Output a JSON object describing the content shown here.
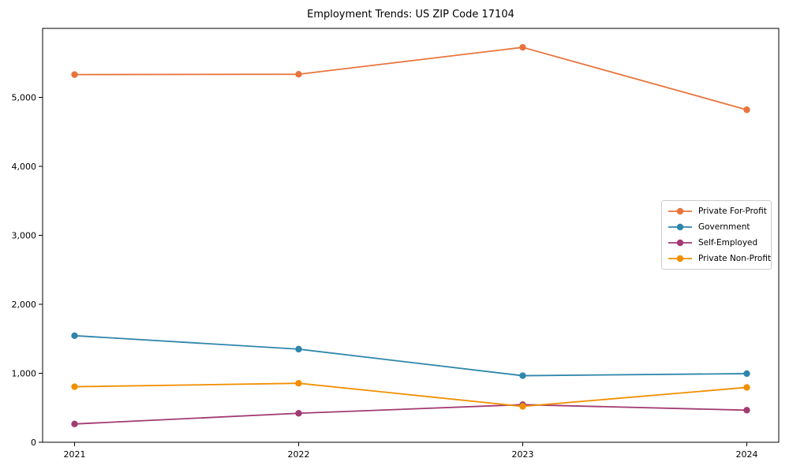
{
  "figure": {
    "background": "#ffffff",
    "axis_color": "#000000",
    "legend_border_color": "#cccccc"
  },
  "chart_data": {
    "type": "line",
    "title": "Employment Trends: US ZIP Code 17104",
    "xlabel": "",
    "ylabel": "",
    "x_categories": [
      "2021",
      "2022",
      "2023",
      "2024"
    ],
    "series": [
      {
        "name": "Private For-Profit",
        "color": "#E8743B",
        "values": [
          5330,
          5335,
          5725,
          4820
        ]
      },
      {
        "name": "Government",
        "color": "#2E86AB",
        "values": [
          1545,
          1350,
          965,
          995
        ]
      },
      {
        "name": "Self-Employed",
        "color": "#A23B72",
        "values": [
          265,
          420,
          545,
          465
        ]
      },
      {
        "name": "Private Non-Profit",
        "color": "#F18F01",
        "values": [
          805,
          855,
          520,
          795
        ]
      }
    ],
    "ylim": [
      0,
      6000
    ],
    "y_tick_values": [
      0,
      1000,
      2000,
      3000,
      4000,
      5000
    ],
    "y_tick_labels": [
      "0",
      "1,000",
      "2,000",
      "3,000",
      "4,000",
      "5,000"
    ],
    "grid": false,
    "legend_position": "center-right",
    "marker": "circle"
  }
}
